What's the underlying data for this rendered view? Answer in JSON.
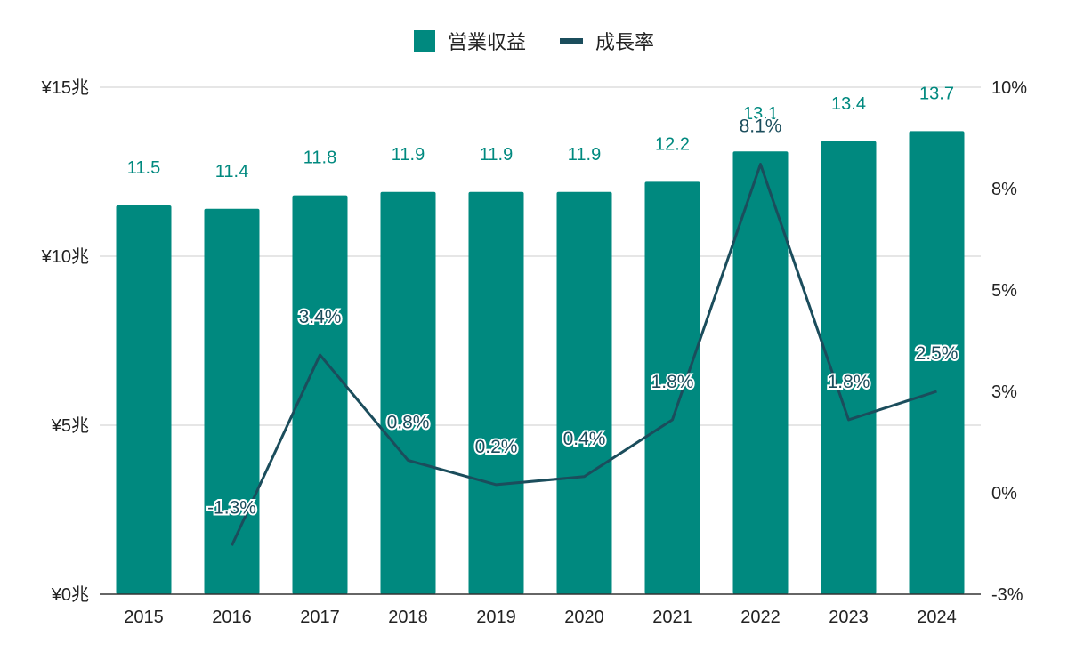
{
  "chart_data": {
    "type": "bar",
    "categories": [
      "2015",
      "2016",
      "2017",
      "2018",
      "2019",
      "2020",
      "2021",
      "2022",
      "2023",
      "2024"
    ],
    "series": [
      {
        "name": "営業収益",
        "type": "bar",
        "axis": "left",
        "values": [
          11.5,
          11.4,
          11.8,
          11.9,
          11.9,
          11.9,
          12.2,
          13.1,
          13.4,
          13.7
        ],
        "labels": [
          "11.5",
          "11.4",
          "11.8",
          "11.9",
          "11.9",
          "11.9",
          "12.2",
          "13.1",
          "13.4",
          "13.7"
        ]
      },
      {
        "name": "成長率",
        "type": "line",
        "axis": "right",
        "values": [
          null,
          -1.3,
          3.4,
          0.8,
          0.2,
          0.4,
          1.8,
          8.1,
          1.8,
          2.5
        ],
        "labels": [
          null,
          "-1.3%",
          "3.4%",
          "0.8%",
          "0.2%",
          "0.4%",
          "1.8%",
          "8.1%",
          "1.8%",
          "2.5%"
        ]
      }
    ],
    "y_left": {
      "ylim": [
        0,
        15
      ],
      "ticks": [
        0,
        5,
        10,
        15
      ],
      "tick_labels": [
        "¥0兆",
        "¥5兆",
        "¥10兆",
        "¥15兆"
      ]
    },
    "y_right": {
      "ylim": [
        -2.5,
        10
      ],
      "ticks": [
        -2.5,
        0,
        2.5,
        5,
        7.5,
        10
      ],
      "tick_labels": [
        "-3%",
        "0%",
        "3%",
        "5%",
        "8%",
        "10%"
      ]
    },
    "legend_position": "top-center",
    "grid": true,
    "colors": {
      "bar": "#00897f",
      "bar_label": "#00897f",
      "line": "#1b4d5c",
      "grid": "#cccccc",
      "axis": "#333333",
      "text": "#222222"
    }
  }
}
